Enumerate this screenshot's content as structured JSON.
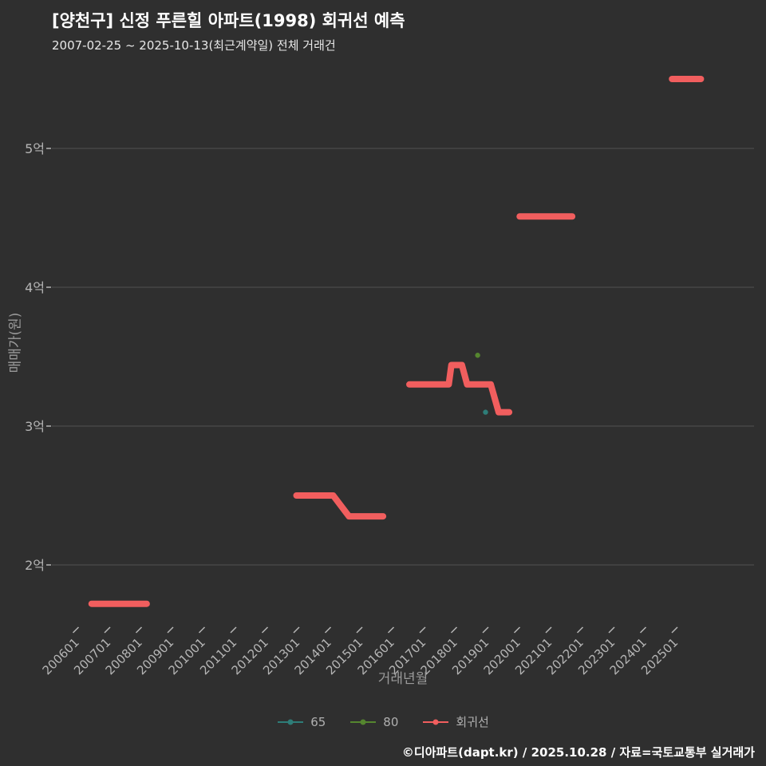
{
  "chart_data": {
    "type": "line",
    "title": "[양천구] 신정 푸른힐 아파트(1998) 회귀선 예측",
    "subtitle": "2007-02-25 ~ 2025-10-13(최근계약일) 전체 거래건",
    "xlabel": "거래년월",
    "ylabel": "매매가(원)",
    "y_unit": "억",
    "grid": "horizontal-only",
    "legend_position": "bottom-center",
    "ylim": [
      1.5,
      5.65
    ],
    "x_ticks": [
      "200601",
      "200701",
      "200801",
      "200901",
      "201001",
      "201101",
      "201201",
      "201301",
      "201401",
      "201501",
      "201601",
      "201701",
      "201801",
      "201901",
      "202001",
      "202101",
      "202201",
      "202301",
      "202401",
      "202501"
    ],
    "y_ticks": [
      {
        "label": "5억",
        "value": 5.0
      },
      {
        "label": "4억",
        "value": 4.0
      },
      {
        "label": "3억",
        "value": 3.0
      },
      {
        "label": "2억",
        "value": 2.0
      }
    ],
    "series": [
      {
        "name": "65",
        "type": "scatter",
        "color": "#2e7d78",
        "points": [
          [
            "201901",
            3.1
          ]
        ]
      },
      {
        "name": "80",
        "type": "scatter",
        "color": "#55862f",
        "points": [
          [
            "201810",
            3.51
          ]
        ]
      },
      {
        "name": "회귀선",
        "type": "line",
        "color": "#f15e5e",
        "line_width": 8,
        "segments": [
          [
            [
              "200607",
              1.72
            ],
            [
              "200804",
              1.72
            ]
          ],
          [
            [
              "201301",
              2.5
            ],
            [
              "201403",
              2.5
            ],
            [
              "201409",
              2.35
            ],
            [
              "201510",
              2.35
            ]
          ],
          [
            [
              "201608",
              3.3
            ],
            [
              "201711",
              3.3
            ],
            [
              "201712",
              3.44
            ],
            [
              "201804",
              3.44
            ],
            [
              "201806",
              3.3
            ],
            [
              "201903",
              3.3
            ],
            [
              "201906",
              3.1
            ],
            [
              "201910",
              3.1
            ]
          ],
          [
            [
              "202002",
              4.51
            ],
            [
              "202110",
              4.51
            ]
          ],
          [
            [
              "202412",
              5.5
            ],
            [
              "202511",
              5.5
            ]
          ]
        ]
      }
    ]
  },
  "footer": {
    "credit": "©디아파트(dapt.kr) / 2025.10.28 / 자료=국토교통부 실거래가"
  },
  "colors": {
    "background": "#2f2f2f",
    "grid": "#525252",
    "tick_label": "#b5b5b5",
    "axis_title": "#9a9a9a",
    "title": "#ffffff",
    "subtitle": "#e8e8e8",
    "legend_label": "#b0b0b0",
    "regression": "#f15e5e",
    "series_65": "#2e7d78",
    "series_80": "#55862f"
  }
}
